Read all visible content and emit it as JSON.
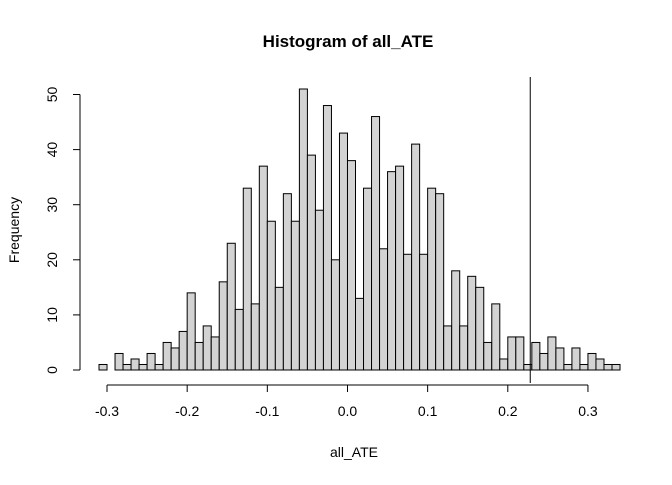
{
  "chart_data": {
    "type": "bar",
    "title": "Histogram of all_ATE",
    "xlabel": "all_ATE",
    "ylabel": "Frequency",
    "bin_width": 0.01,
    "bin_start": -0.31,
    "values": [
      1,
      0,
      3,
      1,
      2,
      1,
      3,
      1,
      5,
      4,
      7,
      14,
      5,
      8,
      6,
      16,
      23,
      11,
      33,
      12,
      37,
      27,
      15,
      32,
      27,
      51,
      39,
      29,
      48,
      20,
      43,
      38,
      13,
      33,
      46,
      22,
      36,
      37,
      21,
      41,
      21,
      33,
      32,
      8,
      18,
      8,
      17,
      15,
      5,
      12,
      2,
      6,
      6,
      1,
      5,
      3,
      6,
      4,
      1,
      4,
      1,
      3,
      2,
      1,
      1
    ],
    "xticks": [
      -0.3,
      -0.2,
      -0.1,
      0.0,
      0.1,
      0.2,
      0.3
    ],
    "xtick_labels": [
      "-0.3",
      "-0.2",
      "-0.1",
      "0.0",
      "0.1",
      "0.2",
      "0.3"
    ],
    "yticks": [
      0,
      10,
      20,
      30,
      40,
      50
    ],
    "ytick_labels": [
      "0",
      "10",
      "20",
      "30",
      "40",
      "50"
    ],
    "xlim": [
      -0.31,
      0.33
    ],
    "ylim": [
      0,
      51
    ],
    "vline_x": 0.228,
    "bar_fill": "#d3d3d3",
    "bar_stroke": "#000000",
    "grid": false,
    "legend": "none"
  }
}
